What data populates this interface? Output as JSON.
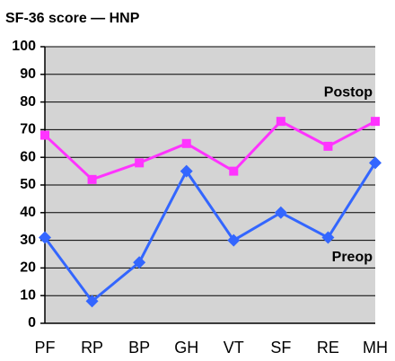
{
  "chart_data": {
    "type": "line",
    "title": "SF-36 score — HNP",
    "categories": [
      "PF",
      "RP",
      "BP",
      "GH",
      "VT",
      "SF",
      "RE",
      "MH"
    ],
    "series": [
      {
        "name": "Postop",
        "color": "#ff33ff",
        "marker": "square",
        "values": [
          68,
          52,
          58,
          65,
          55,
          73,
          64,
          73
        ]
      },
      {
        "name": "Preop",
        "color": "#3366ff",
        "marker": "diamond",
        "values": [
          31,
          8,
          22,
          55,
          30,
          40,
          31,
          58
        ]
      }
    ],
    "ylim": [
      0,
      100
    ],
    "yticks": [
      0,
      10,
      20,
      30,
      40,
      50,
      60,
      70,
      80,
      90,
      100
    ],
    "grid": true
  }
}
